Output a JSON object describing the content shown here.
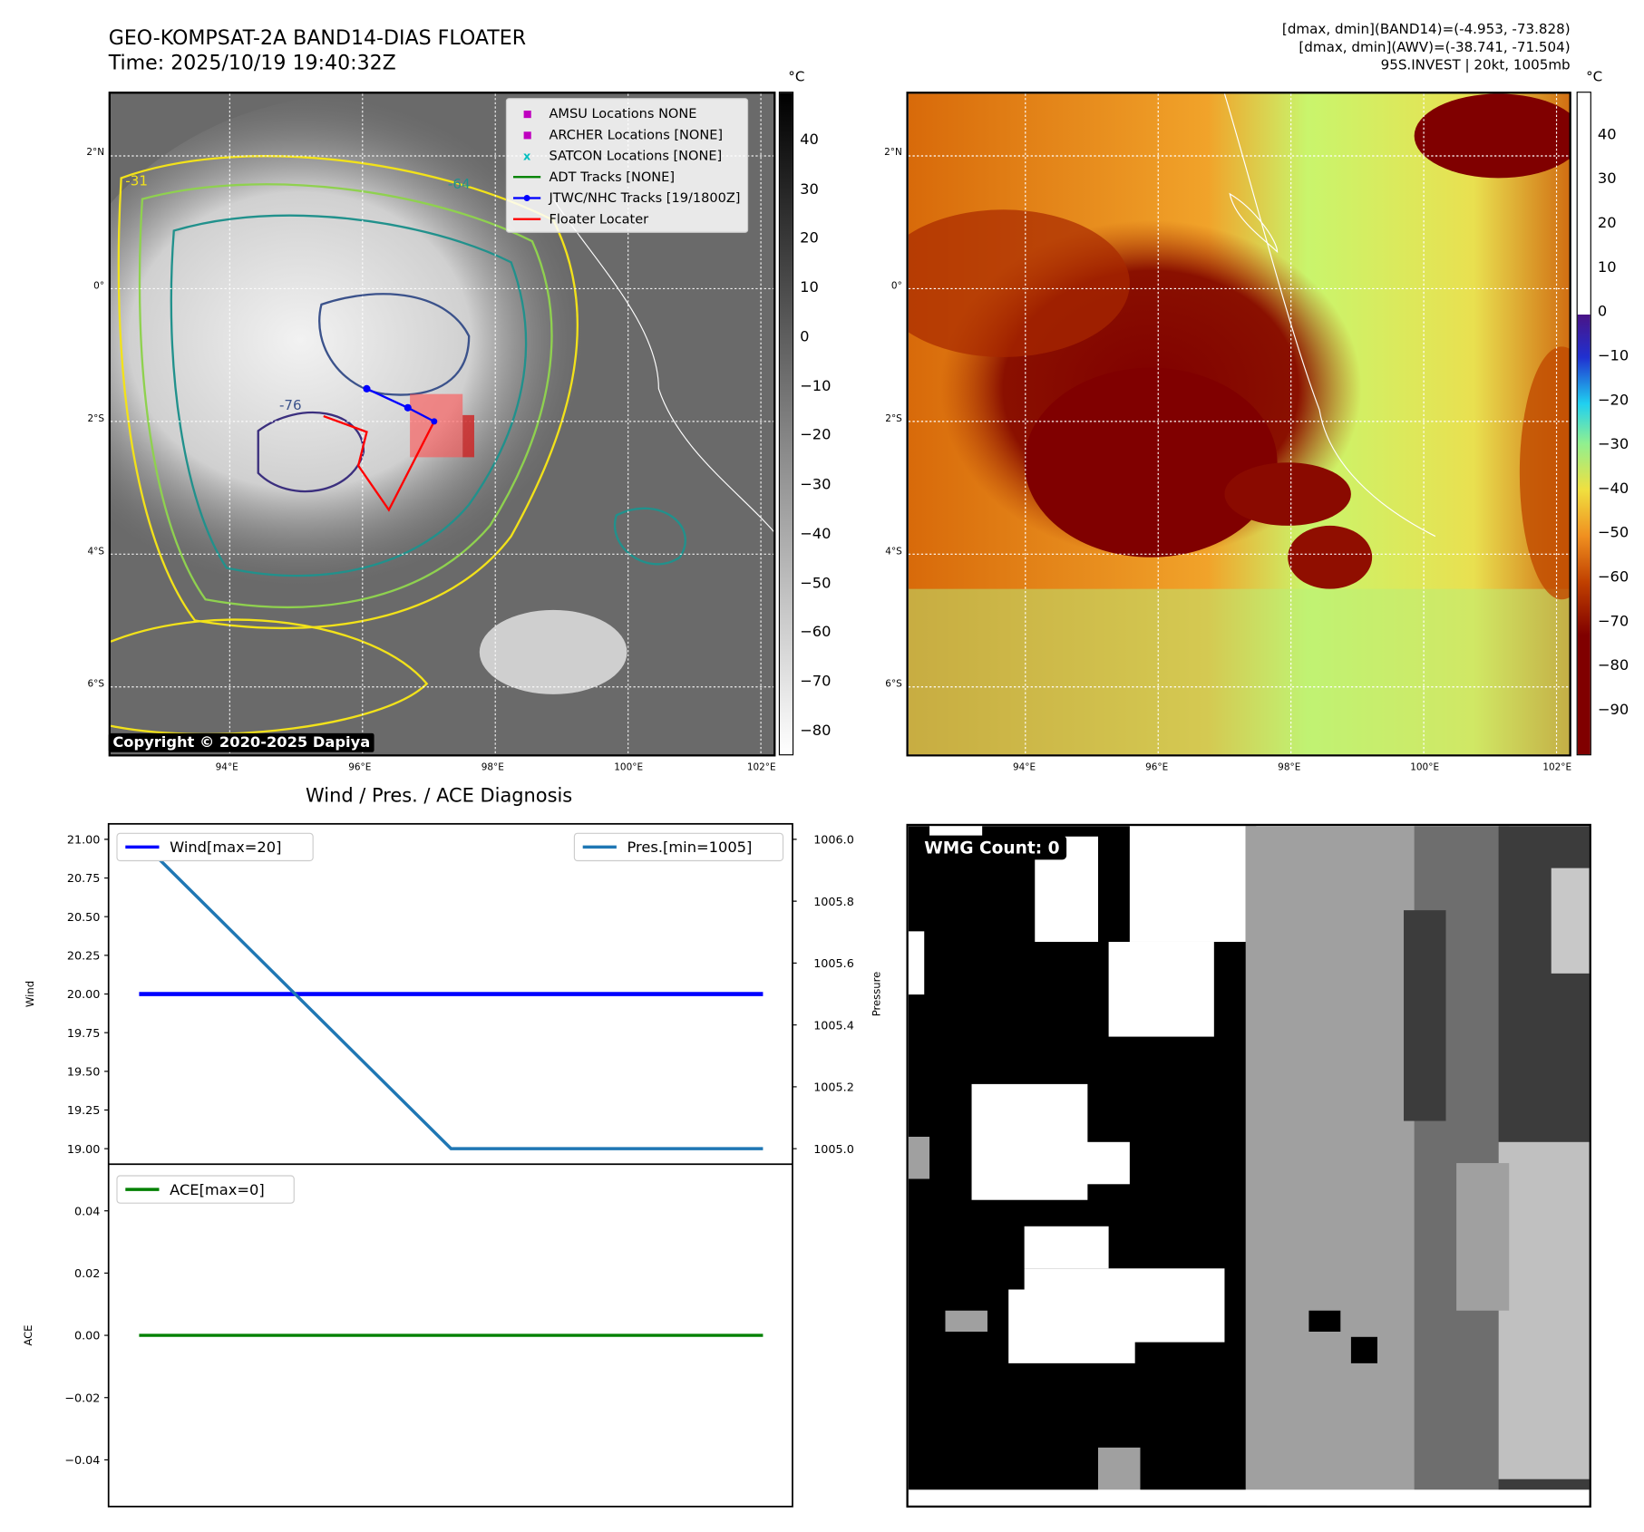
{
  "header": {
    "title_line1": "GEO-KOMPSAT-2A BAND14-DIAS FLOATER",
    "title_line2": "Time: 2025/10/19 19:40:32Z",
    "stat_band14": "[dmax, dmin](BAND14)=(-4.953, -73.828)",
    "stat_awv": "[dmax, dmin](AWV)=(-38.741, -71.504)",
    "storm_info": "95S.INVEST | 20kt, 1005mb"
  },
  "maps": {
    "lon_ticks": [
      "94°E",
      "96°E",
      "98°E",
      "100°E",
      "102°E"
    ],
    "lat_ticks": [
      "2°N",
      "0°",
      "2°S",
      "4°S",
      "6°S"
    ],
    "lon_range": [
      92.2,
      102.24
    ],
    "lat_range": [
      -7.06,
      2.94
    ],
    "copyright": "Copyright © 2020-2025 Dapiya",
    "contour_labels": [
      "-31",
      "-64",
      "-76"
    ],
    "legend": [
      {
        "label": "AMSU Locations NONE",
        "marker": "square",
        "color": "#bf00bf"
      },
      {
        "label": "ARCHER Locations [NONE]",
        "marker": "square",
        "color": "#bf00bf"
      },
      {
        "label": "SATCON Locations [NONE]",
        "marker": "x",
        "color": "#00bfbf"
      },
      {
        "label": "ADT Tracks [NONE]",
        "marker": "line",
        "color": "#008000"
      },
      {
        "label": "JTWC/NHC Tracks [19/1800Z]",
        "marker": "line-dot",
        "color": "#0000ff"
      },
      {
        "label": "Floater Locater",
        "marker": "line",
        "color": "#ff0000"
      }
    ],
    "left_colorbar": {
      "unit": "°C",
      "ticks": [
        "40",
        "30",
        "20",
        "10",
        "0",
        "−10",
        "−20",
        "−30",
        "−40",
        "−50",
        "−60",
        "−70",
        "−80"
      ],
      "range": [
        -84.7,
        50
      ]
    },
    "right_colorbar": {
      "unit": "°C",
      "ticks": [
        "40",
        "30",
        "20",
        "10",
        "0",
        "−10",
        "−20",
        "−30",
        "−40",
        "−50",
        "−60",
        "−70",
        "−80",
        "−90"
      ],
      "range": [
        -100,
        50
      ]
    }
  },
  "chart_data": [
    {
      "type": "line",
      "title": "Wind / Pres. / ACE Diagnosis",
      "x": [
        0,
        1,
        2
      ],
      "series": [
        {
          "name": "Wind[max=20]",
          "axis": "left",
          "color": "#0000ff",
          "values": [
            20,
            20,
            20
          ]
        },
        {
          "name": "Pres.[min=1005]",
          "axis": "right",
          "color": "#1f77b4",
          "values": [
            1006,
            1005,
            1005
          ]
        }
      ],
      "ylabel": "Wind",
      "y2label": "Pressure",
      "ylim": [
        18.9,
        21.1
      ],
      "y2lim": [
        1004.95,
        1006.05
      ],
      "yticks": [
        "21.00",
        "20.75",
        "20.50",
        "20.25",
        "20.00",
        "19.75",
        "19.50",
        "19.25",
        "19.00"
      ],
      "y2ticks": [
        "1006.0",
        "1005.8",
        "1005.6",
        "1005.4",
        "1005.2",
        "1005.0"
      ]
    },
    {
      "type": "line",
      "x": [
        0,
        1,
        2
      ],
      "series": [
        {
          "name": "ACE[max=0]",
          "color": "#008000",
          "values": [
            0,
            0,
            0
          ]
        }
      ],
      "ylabel": "ACE",
      "ylim": [
        -0.055,
        0.055
      ],
      "yticks": [
        "0.04",
        "0.02",
        "0.00",
        "−0.02",
        "−0.04"
      ]
    }
  ],
  "wmg": {
    "label": "WMG Count: 0"
  }
}
